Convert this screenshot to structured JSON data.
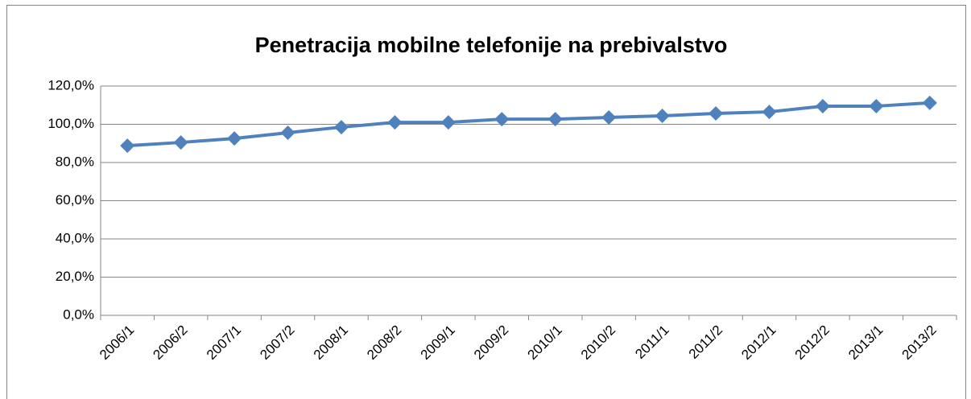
{
  "chart_data": {
    "type": "line",
    "title": "Penetracija mobilne telefonije na prebivalstvo",
    "categories": [
      "2006/1",
      "2006/2",
      "2007/1",
      "2007/2",
      "2008/1",
      "2008/2",
      "2009/1",
      "2009/2",
      "2010/1",
      "2010/2",
      "2011/1",
      "2011/2",
      "2012/1",
      "2012/2",
      "2013/1",
      "2013/2"
    ],
    "series": [
      {
        "color": "#4f81bd",
        "values": [
          88.8,
          90.5,
          92.6,
          95.6,
          98.5,
          101.0,
          101.0,
          102.7,
          102.7,
          103.6,
          104.4,
          105.7,
          106.5,
          109.5,
          109.5,
          111.2
        ]
      }
    ],
    "ylim": [
      0,
      120
    ],
    "yticks": [
      {
        "value": 0,
        "label": "0,0%"
      },
      {
        "value": 20,
        "label": "20,0%"
      },
      {
        "value": 40,
        "label": "40,0%"
      },
      {
        "value": 60,
        "label": "60,0%"
      },
      {
        "value": 80,
        "label": "80,0%"
      },
      {
        "value": 100,
        "label": "100,0%"
      },
      {
        "value": 120,
        "label": "120,0%"
      }
    ],
    "grid": true
  }
}
